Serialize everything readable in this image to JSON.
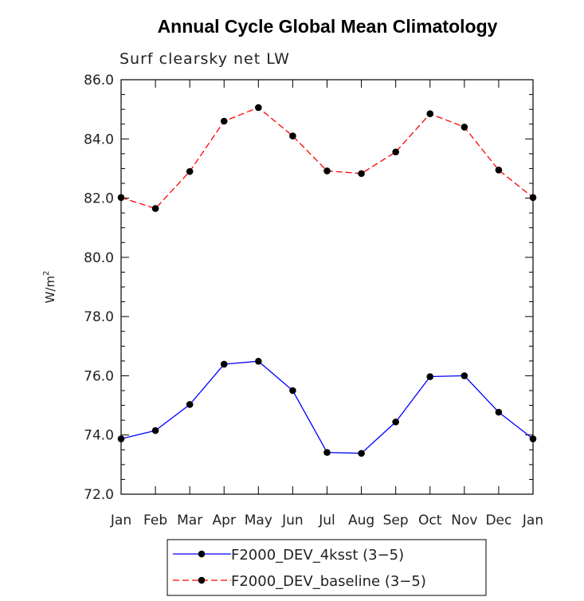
{
  "chart_data": {
    "type": "line",
    "title": "Annual Cycle Global Mean Climatology",
    "subtitle": "Surf clearsky net LW",
    "ylabel": "W/m",
    "ylabel_sup": "2",
    "xlabel": "",
    "categories": [
      "Jan",
      "Feb",
      "Mar",
      "Apr",
      "May",
      "Jun",
      "Jul",
      "Aug",
      "Sep",
      "Oct",
      "Nov",
      "Dec",
      "Jan"
    ],
    "ylim": [
      72.0,
      86.0
    ],
    "yticks": [
      "72.0",
      "74.0",
      "76.0",
      "78.0",
      "80.0",
      "82.0",
      "84.0",
      "86.0"
    ],
    "ytick_values": [
      72,
      74,
      76,
      78,
      80,
      82,
      84,
      86
    ],
    "grid": false,
    "legend_position": "bottom-center",
    "series": [
      {
        "name": "F2000_DEV_4ksst (3-5)",
        "legend_label": "F2000_DEV_4ksst (3−5)",
        "color": "#0000ff",
        "dash": "solid",
        "values": [
          73.87,
          74.15,
          75.03,
          76.39,
          76.49,
          75.5,
          73.41,
          73.38,
          74.44,
          75.97,
          76.0,
          74.77,
          73.87
        ]
      },
      {
        "name": "F2000_DEV_baseline (3-5)",
        "legend_label": "F2000_DEV_baseline (3−5)",
        "color": "#ff0000",
        "dash": "dashed",
        "values": [
          82.02,
          81.65,
          82.9,
          84.6,
          85.06,
          84.1,
          82.92,
          82.83,
          83.56,
          84.85,
          84.4,
          82.95,
          82.02
        ]
      }
    ]
  }
}
